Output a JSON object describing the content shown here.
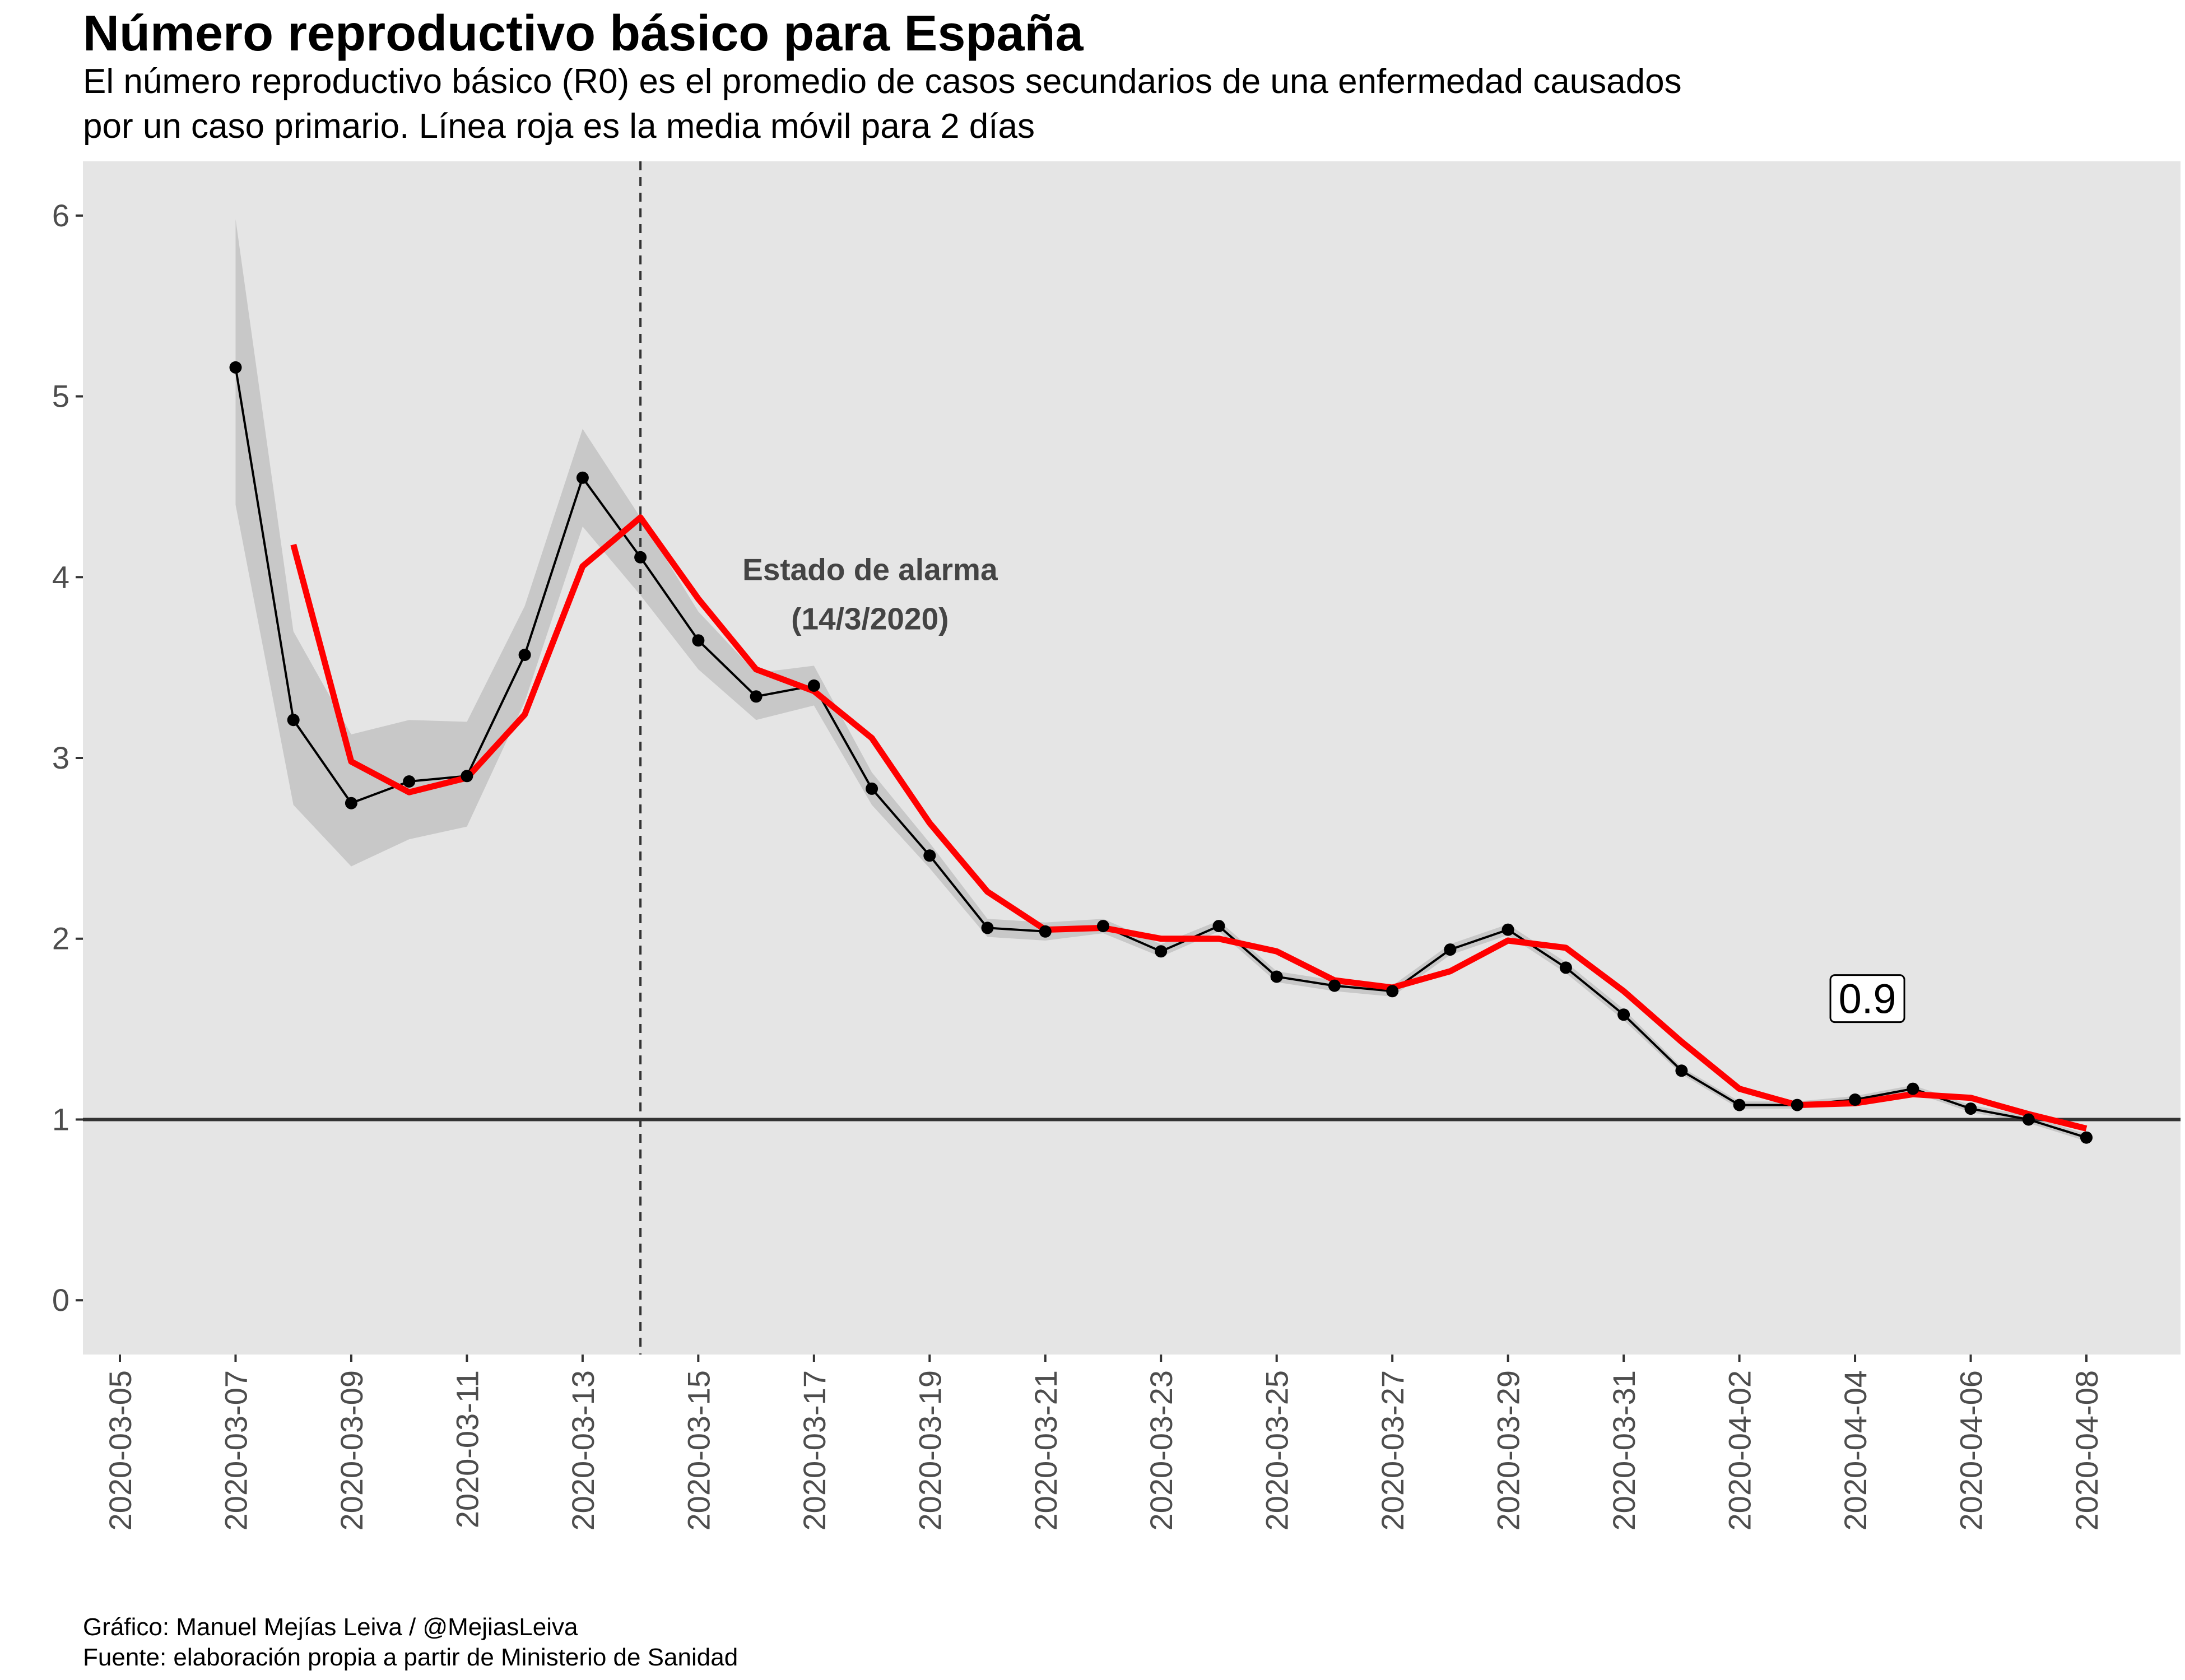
{
  "title": "Número reproductivo básico para España",
  "subtitle": {
    "line1": "El número reproductivo básico (R0) es el promedio de casos secundarios de una enfermedad causados",
    "line2": "por un caso primario. Línea roja es la media móvil para 2 días"
  },
  "caption": {
    "line1": "Gráfico: Manuel Mejías Leiva / @MejiasLeiva",
    "line2": "Fuente: elaboración propia a partir de Ministerio de Sanidad"
  },
  "colors": {
    "panel_background": "#e5e5e5",
    "ribbon": "#c8c8c8",
    "r0_line": "#000000",
    "moving_average": "#ff0000",
    "reference_line": "#333333",
    "annotation_text": "#444444"
  },
  "chart_data": {
    "type": "line",
    "title": "Número reproductivo básico para España",
    "xlabel": "",
    "ylabel": "",
    "x_type": "date",
    "xlim": [
      "2020-03-05",
      "2020-04-08"
    ],
    "ylim": [
      -0.3,
      6.3
    ],
    "grid": false,
    "x_ticks": [
      "2020-03-05",
      "2020-03-07",
      "2020-03-09",
      "2020-03-11",
      "2020-03-13",
      "2020-03-15",
      "2020-03-17",
      "2020-03-19",
      "2020-03-21",
      "2020-03-23",
      "2020-03-25",
      "2020-03-27",
      "2020-03-29",
      "2020-03-31",
      "2020-04-02",
      "2020-04-04",
      "2020-04-06",
      "2020-04-08"
    ],
    "y_ticks": [
      0,
      1,
      2,
      3,
      4,
      5,
      6
    ],
    "series": [
      {
        "kind": "line+points",
        "color": "#000000",
        "points": [
          {
            "x": "2020-03-07",
            "y": 5.16,
            "lo": 4.4,
            "hi": 5.98
          },
          {
            "x": "2020-03-08",
            "y": 3.21,
            "lo": 2.74,
            "hi": 3.7
          },
          {
            "x": "2020-03-09",
            "y": 2.75,
            "lo": 2.4,
            "hi": 3.13
          },
          {
            "x": "2020-03-10",
            "y": 2.87,
            "lo": 2.55,
            "hi": 3.21
          },
          {
            "x": "2020-03-11",
            "y": 2.9,
            "lo": 2.62,
            "hi": 3.2
          },
          {
            "x": "2020-03-12",
            "y": 3.57,
            "lo": 3.31,
            "hi": 3.84
          },
          {
            "x": "2020-03-13",
            "y": 4.55,
            "lo": 4.28,
            "hi": 4.82
          },
          {
            "x": "2020-03-14",
            "y": 4.11,
            "lo": 3.9,
            "hi": 4.33
          },
          {
            "x": "2020-03-15",
            "y": 3.65,
            "lo": 3.49,
            "hi": 3.81
          },
          {
            "x": "2020-03-16",
            "y": 3.34,
            "lo": 3.21,
            "hi": 3.47
          },
          {
            "x": "2020-03-17",
            "y": 3.4,
            "lo": 3.29,
            "hi": 3.51
          },
          {
            "x": "2020-03-18",
            "y": 2.83,
            "lo": 2.74,
            "hi": 2.92
          },
          {
            "x": "2020-03-19",
            "y": 2.46,
            "lo": 2.39,
            "hi": 2.53
          },
          {
            "x": "2020-03-20",
            "y": 2.06,
            "lo": 2.01,
            "hi": 2.11
          },
          {
            "x": "2020-03-21",
            "y": 2.04,
            "lo": 1.99,
            "hi": 2.09
          },
          {
            "x": "2020-03-22",
            "y": 2.07,
            "lo": 2.03,
            "hi": 2.11
          },
          {
            "x": "2020-03-23",
            "y": 1.93,
            "lo": 1.9,
            "hi": 1.97
          },
          {
            "x": "2020-03-24",
            "y": 2.07,
            "lo": 2.04,
            "hi": 2.1
          },
          {
            "x": "2020-03-25",
            "y": 1.79,
            "lo": 1.76,
            "hi": 1.82
          },
          {
            "x": "2020-03-26",
            "y": 1.74,
            "lo": 1.71,
            "hi": 1.77
          },
          {
            "x": "2020-03-27",
            "y": 1.71,
            "lo": 1.68,
            "hi": 1.74
          },
          {
            "x": "2020-03-28",
            "y": 1.94,
            "lo": 1.91,
            "hi": 1.97
          },
          {
            "x": "2020-03-29",
            "y": 2.05,
            "lo": 2.02,
            "hi": 2.08
          },
          {
            "x": "2020-03-30",
            "y": 1.84,
            "lo": 1.81,
            "hi": 1.87
          },
          {
            "x": "2020-03-31",
            "y": 1.58,
            "lo": 1.55,
            "hi": 1.61
          },
          {
            "x": "2020-04-01",
            "y": 1.27,
            "lo": 1.25,
            "hi": 1.29
          },
          {
            "x": "2020-04-02",
            "y": 1.08,
            "lo": 1.06,
            "hi": 1.1
          },
          {
            "x": "2020-04-03",
            "y": 1.08,
            "lo": 1.06,
            "hi": 1.1
          },
          {
            "x": "2020-04-04",
            "y": 1.11,
            "lo": 1.09,
            "hi": 1.13
          },
          {
            "x": "2020-04-05",
            "y": 1.17,
            "lo": 1.15,
            "hi": 1.19
          },
          {
            "x": "2020-04-06",
            "y": 1.06,
            "lo": 1.04,
            "hi": 1.08
          },
          {
            "x": "2020-04-07",
            "y": 1.0,
            "lo": 0.98,
            "hi": 1.02
          },
          {
            "x": "2020-04-08",
            "y": 0.9,
            "lo": 0.88,
            "hi": 0.92
          }
        ]
      },
      {
        "kind": "line",
        "color": "#ff0000",
        "points": [
          {
            "x": "2020-03-08",
            "y": 4.18
          },
          {
            "x": "2020-03-09",
            "y": 2.98
          },
          {
            "x": "2020-03-10",
            "y": 2.81
          },
          {
            "x": "2020-03-11",
            "y": 2.89
          },
          {
            "x": "2020-03-12",
            "y": 3.24
          },
          {
            "x": "2020-03-13",
            "y": 4.06
          },
          {
            "x": "2020-03-14",
            "y": 4.33
          },
          {
            "x": "2020-03-15",
            "y": 3.88
          },
          {
            "x": "2020-03-16",
            "y": 3.49
          },
          {
            "x": "2020-03-17",
            "y": 3.37
          },
          {
            "x": "2020-03-18",
            "y": 3.11
          },
          {
            "x": "2020-03-19",
            "y": 2.64
          },
          {
            "x": "2020-03-20",
            "y": 2.26
          },
          {
            "x": "2020-03-21",
            "y": 2.05
          },
          {
            "x": "2020-03-22",
            "y": 2.06
          },
          {
            "x": "2020-03-23",
            "y": 2.0
          },
          {
            "x": "2020-03-24",
            "y": 2.0
          },
          {
            "x": "2020-03-25",
            "y": 1.93
          },
          {
            "x": "2020-03-26",
            "y": 1.77
          },
          {
            "x": "2020-03-27",
            "y": 1.73
          },
          {
            "x": "2020-03-28",
            "y": 1.82
          },
          {
            "x": "2020-03-29",
            "y": 1.99
          },
          {
            "x": "2020-03-30",
            "y": 1.95
          },
          {
            "x": "2020-03-31",
            "y": 1.71
          },
          {
            "x": "2020-04-01",
            "y": 1.43
          },
          {
            "x": "2020-04-02",
            "y": 1.17
          },
          {
            "x": "2020-04-03",
            "y": 1.08
          },
          {
            "x": "2020-04-04",
            "y": 1.09
          },
          {
            "x": "2020-04-05",
            "y": 1.14
          },
          {
            "x": "2020-04-06",
            "y": 1.12
          },
          {
            "x": "2020-04-07",
            "y": 1.03
          },
          {
            "x": "2020-04-08",
            "y": 0.95
          }
        ]
      }
    ],
    "reference_lines": {
      "horizontal_y": 1,
      "vertical_dashed_x": "2020-03-14"
    },
    "annotations": {
      "event_line1": "Estado de alarma",
      "event_line2": "(14/3/2020)",
      "event_anchor": {
        "x": "2020-03-17",
        "y": 4.0
      },
      "value_label": "0.9",
      "value_anchor": {
        "x": "2020-04-04",
        "y": 1.65
      }
    }
  }
}
